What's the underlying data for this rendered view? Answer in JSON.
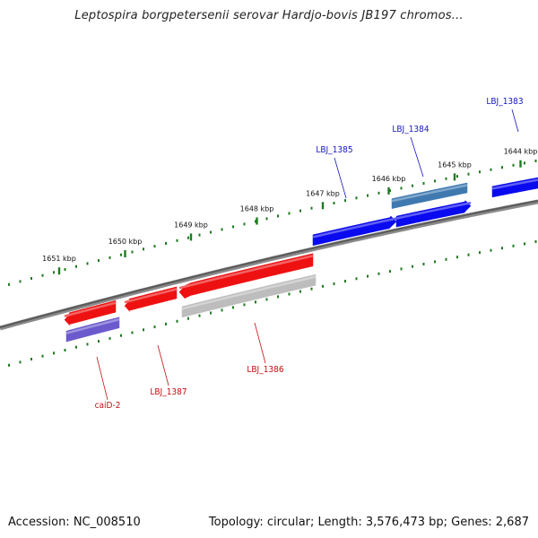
{
  "title": "Leptospira borgpetersenii serovar Hardjo-bovis JB197 chromos...",
  "footer": {
    "accession": "Accession: NC_008510",
    "summary": "Topology: circular; Length: 3,576,473 bp; Genes: 2,687"
  },
  "colors": {
    "backbone": "#6e6e6e",
    "tick": "#1f7a1f",
    "gene_forward": "#0a0af0",
    "gene_forward_alt": "#3f79b0",
    "gene_reverse": "#ee1111",
    "gene_pseudo": "#bdbdbd",
    "gene_other": "#6a5acd",
    "label_forward": "#1515c0",
    "label_reverse": "#c01010"
  },
  "ruler": {
    "unit": "kbp",
    "positions_kbp": [
      1651,
      1650,
      1649,
      1648,
      1647,
      1646,
      1645,
      1644
    ],
    "labels": [
      "1651 kbp",
      "1650 kbp",
      "1649 kbp",
      "1648 kbp",
      "1647 kbp",
      "1646 kbp",
      "1645 kbp",
      "1644 kbp"
    ]
  },
  "genes": [
    {
      "label": "LBJ_1383",
      "strand": "forward",
      "color": "gene_forward"
    },
    {
      "label": "LBJ_1384",
      "strand": "forward",
      "color": "gene_forward_alt"
    },
    {
      "label": "LBJ_1385",
      "strand": "forward",
      "color": "gene_forward"
    },
    {
      "label": "",
      "strand": "forward",
      "color": "gene_forward"
    },
    {
      "label": "LBJ_1386",
      "strand": "reverse",
      "color": "gene_reverse"
    },
    {
      "label": "",
      "strand": "reverse",
      "color": "gene_pseudo"
    },
    {
      "label": "LBJ_1387",
      "strand": "reverse",
      "color": "gene_reverse"
    },
    {
      "label": "caiD-2",
      "strand": "reverse",
      "color": "gene_reverse"
    },
    {
      "label": "",
      "strand": "reverse",
      "color": "gene_other"
    }
  ]
}
